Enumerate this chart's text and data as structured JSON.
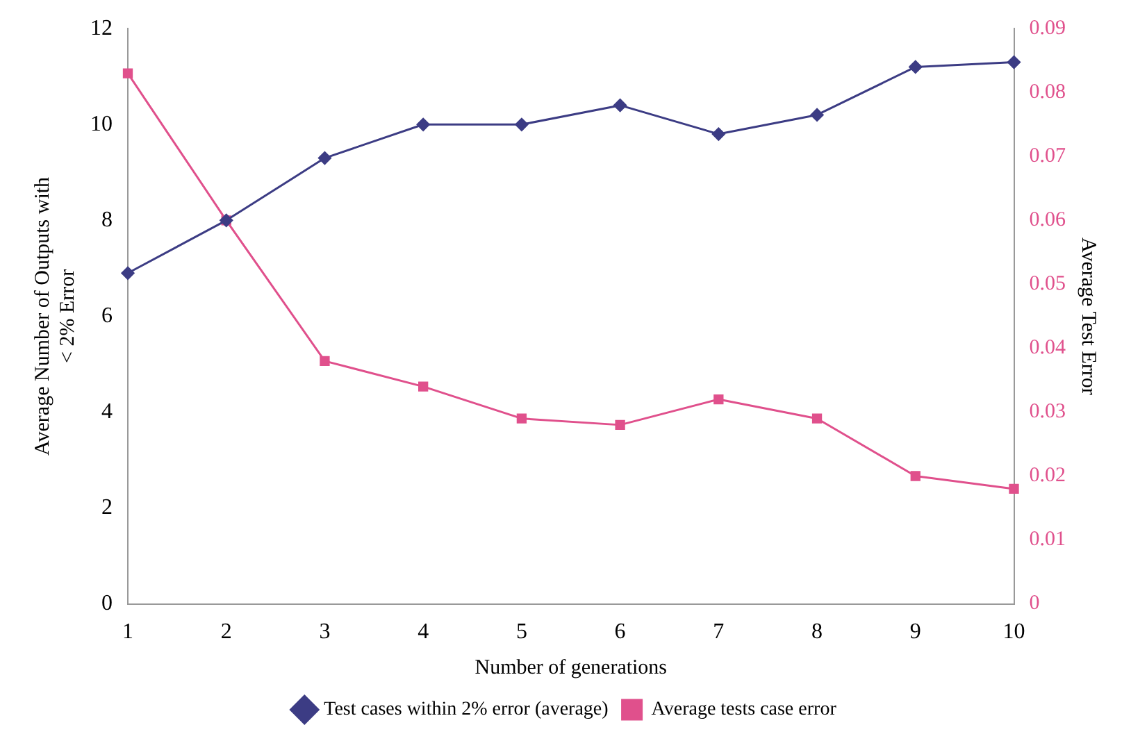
{
  "chart_data": {
    "type": "line",
    "xlabel": "Number of generations",
    "ylabel": "Average Number of Outputs with\n< 2% Error",
    "y2label": "Average Test Error",
    "categories": [
      "1",
      "2",
      "3",
      "4",
      "5",
      "6",
      "7",
      "8",
      "9",
      "10"
    ],
    "series": [
      {
        "name": "Test cases within 2% error (average)",
        "color": "#3c3c84",
        "marker": "diamond",
        "values": [
          6.9,
          8.0,
          9.3,
          10.0,
          10.0,
          10.4,
          9.8,
          10.2,
          11.2,
          11.3
        ]
      },
      {
        "name": "Average tests case error",
        "color": "#e0508c",
        "marker": "square",
        "axis": "y2",
        "values": [
          0.083,
          0.06,
          0.038,
          0.034,
          0.029,
          0.028,
          0.032,
          0.029,
          0.02,
          0.018
        ]
      }
    ],
    "ylim": [
      0,
      12
    ],
    "yticks": [
      0,
      2,
      4,
      6,
      8,
      10,
      12
    ],
    "y2lim": [
      0,
      0.09
    ],
    "y2ticks": [
      0,
      0.01,
      0.02,
      0.03,
      0.04,
      0.05,
      0.06,
      0.07,
      0.08,
      0.09
    ],
    "grid": false,
    "legend": "bottom",
    "line_style": "solid"
  }
}
